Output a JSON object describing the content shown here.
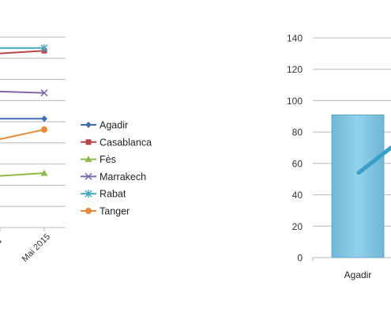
{
  "chart_data": [
    {
      "type": "line",
      "categories": [
        "",
        "Mai 2015"
      ],
      "series": [
        {
          "name": "Agadir",
          "values": [
            null,
            70
          ],
          "color": "#3f6fb5",
          "marker": "diamond"
        },
        {
          "name": "Casablanca",
          "values": [
            null,
            120
          ],
          "color": "#b84747",
          "marker": "square"
        },
        {
          "name": "Fès",
          "values": [
            null,
            30
          ],
          "color": "#8dba4a",
          "marker": "triangle"
        },
        {
          "name": "Marrakech",
          "values": [
            null,
            89
          ],
          "color": "#8166a8",
          "marker": "x"
        },
        {
          "name": "Rabat",
          "values": [
            null,
            122
          ],
          "color": "#42a8c4",
          "marker": "star"
        },
        {
          "name": "Tanger",
          "values": [
            null,
            62
          ],
          "color": "#e8893a",
          "marker": "circle"
        }
      ],
      "partial_series_start": {
        "Agadir": 70,
        "Casablanca": 118,
        "Fès": 28,
        "Marrakech": 90,
        "Rabat": 122,
        "Tanger": 55
      },
      "ylim": [
        -10,
        130
      ],
      "grid": true,
      "legend": "right",
      "title": "",
      "xlabel": "",
      "ylabel": ""
    },
    {
      "type": "bar",
      "categories": [
        "Agadir"
      ],
      "values": [
        91
      ],
      "line_series_partial": [
        54,
        67
      ],
      "bar_color": "#7fc8e6",
      "line_color": "#3a9ec9",
      "ylim": [
        0,
        140
      ],
      "yticks": [
        "0",
        "20",
        "40",
        "60",
        "80",
        "100",
        "120",
        "140"
      ],
      "grid": true,
      "title": "",
      "xlabel": "",
      "ylabel": ""
    }
  ]
}
